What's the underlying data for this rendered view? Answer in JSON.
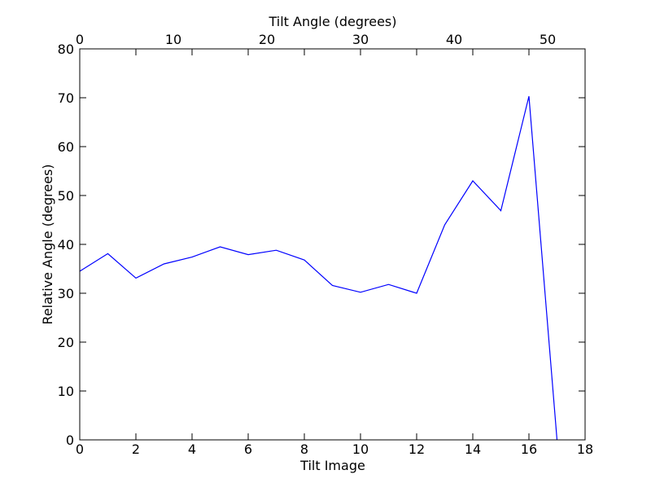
{
  "chart_data": {
    "type": "line",
    "title": "",
    "xlabel": "Tilt Image",
    "ylabel": "Relative Angle (degrees)",
    "x2label": "Tilt Angle (degrees)",
    "xlim": [
      0,
      18
    ],
    "ylim": [
      0,
      80
    ],
    "x2lim": [
      0,
      54
    ],
    "xticks": [
      0,
      2,
      4,
      6,
      8,
      10,
      12,
      14,
      16,
      18
    ],
    "yticks": [
      0,
      10,
      20,
      30,
      40,
      50,
      60,
      70,
      80
    ],
    "x2ticks": [
      0,
      10,
      20,
      30,
      40,
      50
    ],
    "grid": false,
    "series": [
      {
        "color": "#0000ff",
        "x": [
          0,
          1,
          2,
          3,
          4,
          5,
          6,
          7,
          8,
          9,
          10,
          11,
          12,
          13,
          14,
          15,
          16,
          17
        ],
        "y": [
          34.5,
          38.1,
          33.1,
          36.0,
          37.4,
          39.5,
          37.9,
          38.8,
          36.8,
          31.6,
          30.2,
          31.8,
          30.0,
          44.0,
          53.0,
          46.9,
          70.3,
          0.0
        ]
      }
    ]
  }
}
